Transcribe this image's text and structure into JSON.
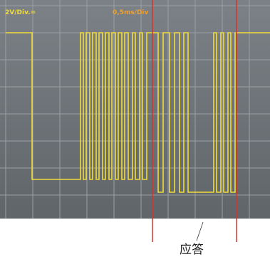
{
  "screen": {
    "volts_per_div": "2V/Div.=",
    "time_per_div": "0,5ms/Div"
  },
  "annotation": {
    "label": "应答"
  }
}
